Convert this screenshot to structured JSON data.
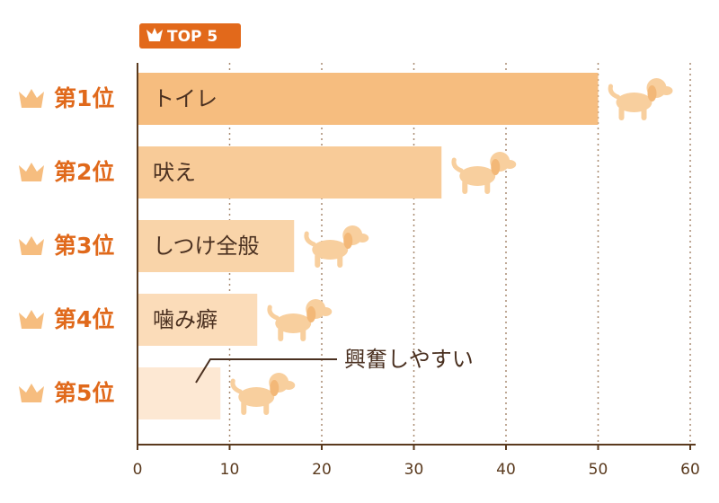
{
  "chart_data": {
    "type": "bar",
    "orientation": "horizontal",
    "badge": "TOP 5",
    "categories": [
      "第1位",
      "第2位",
      "第3位",
      "第4位",
      "第5位"
    ],
    "bar_labels": [
      "トイレ",
      "吠え",
      "しつけ全般",
      "噛み癖",
      "興奮しやすい"
    ],
    "values": [
      50,
      33,
      17,
      13,
      9
    ],
    "colors": [
      "#f6bd7f",
      "#f8cb98",
      "#f9d4a9",
      "#fbdcb9",
      "#fde8d3"
    ],
    "xlim": [
      0,
      60
    ],
    "xticks": [
      0,
      10,
      20,
      30,
      40,
      50,
      60
    ],
    "grid": true
  }
}
